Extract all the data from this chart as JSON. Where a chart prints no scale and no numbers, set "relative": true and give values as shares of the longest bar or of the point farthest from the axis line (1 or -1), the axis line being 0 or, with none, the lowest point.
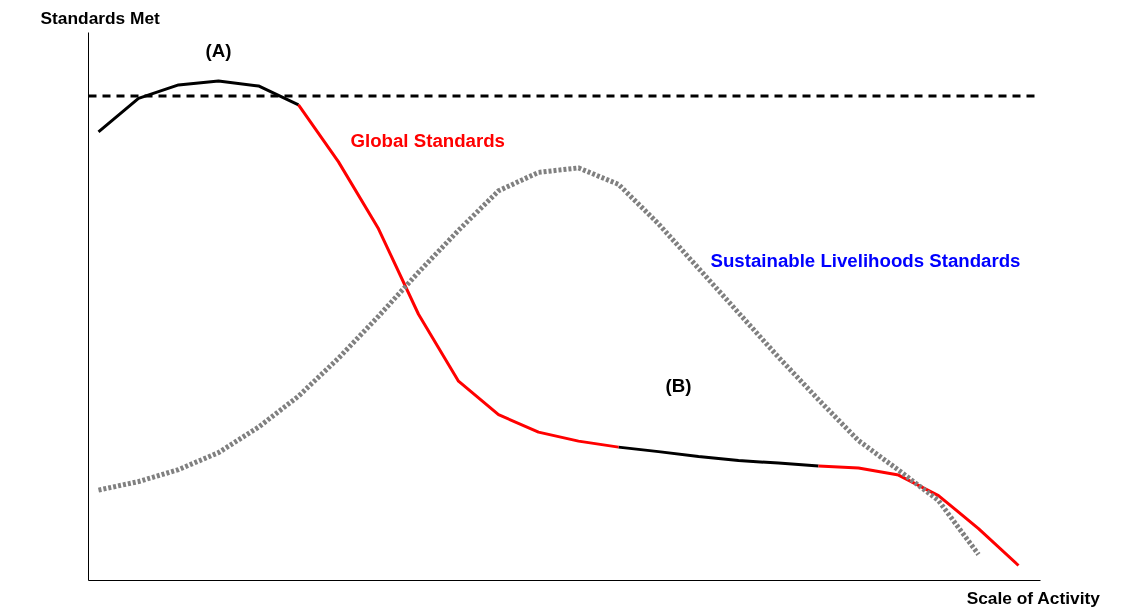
{
  "chart_data": {
    "type": "line",
    "relative": true,
    "xlabel": "Scale of Activity",
    "ylabel": "Standards Met",
    "categories": [
      null,
      null,
      null,
      null,
      null,
      null,
      null,
      null,
      null,
      null,
      null,
      null,
      null,
      null,
      null,
      null,
      null,
      null,
      null,
      null,
      null,
      null,
      null,
      null
    ],
    "series": [
      {
        "name": "Global Standards",
        "color": "#ff0000",
        "values": [
          null,
          null,
          null,
          null,
          null,
          0.952,
          0.838,
          0.704,
          0.533,
          0.399,
          0.332,
          0.297,
          0.279,
          0.267,
          null,
          null,
          null,
          null,
          0.229,
          0.225,
          0.211,
          0.17,
          0.104,
          0.03
        ]
      },
      {
        "name": "Sustainable Livelihoods Standards",
        "color": "#808080",
        "line_style": "dotted",
        "values": [
          0.181,
          0.198,
          0.222,
          0.256,
          0.307,
          0.369,
          0.445,
          0.529,
          0.617,
          0.701,
          0.78,
          0.817,
          0.826,
          0.793,
          0.714,
          0.625,
          0.536,
          0.447,
          0.362,
          0.28,
          0.221,
          0.16,
          0.052,
          null
        ]
      },
      {
        "color": "#000000",
        "values": [
          0.898,
          0.965,
          0.992,
          1.0,
          0.99,
          0.952,
          null,
          null,
          null,
          null,
          null,
          null,
          null,
          null,
          null,
          null,
          null,
          null,
          null,
          null,
          null,
          null,
          null,
          null
        ]
      },
      {
        "color": "#000000",
        "values": [
          null,
          null,
          null,
          null,
          null,
          null,
          null,
          null,
          null,
          null,
          null,
          null,
          null,
          0.267,
          0.258,
          0.248,
          0.24,
          0.235,
          0.229,
          null,
          null,
          null,
          null,
          null
        ]
      }
    ],
    "ref_lines": [
      {
        "axis": "y",
        "value": 0.97,
        "color": "#000000",
        "line_style": "dashed"
      }
    ],
    "annotations": [
      "(A)",
      "(B)"
    ]
  }
}
